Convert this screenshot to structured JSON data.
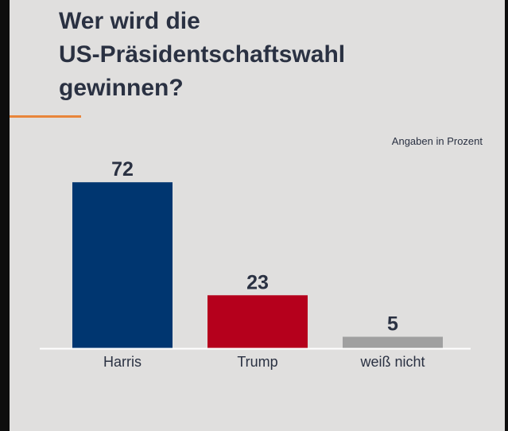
{
  "chart_data": {
    "type": "bar",
    "title": "Wer wird die US-Präsidentschaftswahl gewinnen?",
    "title_lines": [
      "Wer wird die",
      "US-Präsidentschaftswahl",
      "gewinnen?"
    ],
    "unit_note": "Angaben in Prozent",
    "categories": [
      "Harris",
      "Trump",
      "weiß nicht"
    ],
    "values": [
      72,
      23,
      5
    ],
    "colors": [
      "#003670",
      "#b5001c",
      "#a0a0a0"
    ],
    "ylim": [
      0,
      100
    ],
    "grid": false,
    "accent_color": "#e8853a"
  }
}
